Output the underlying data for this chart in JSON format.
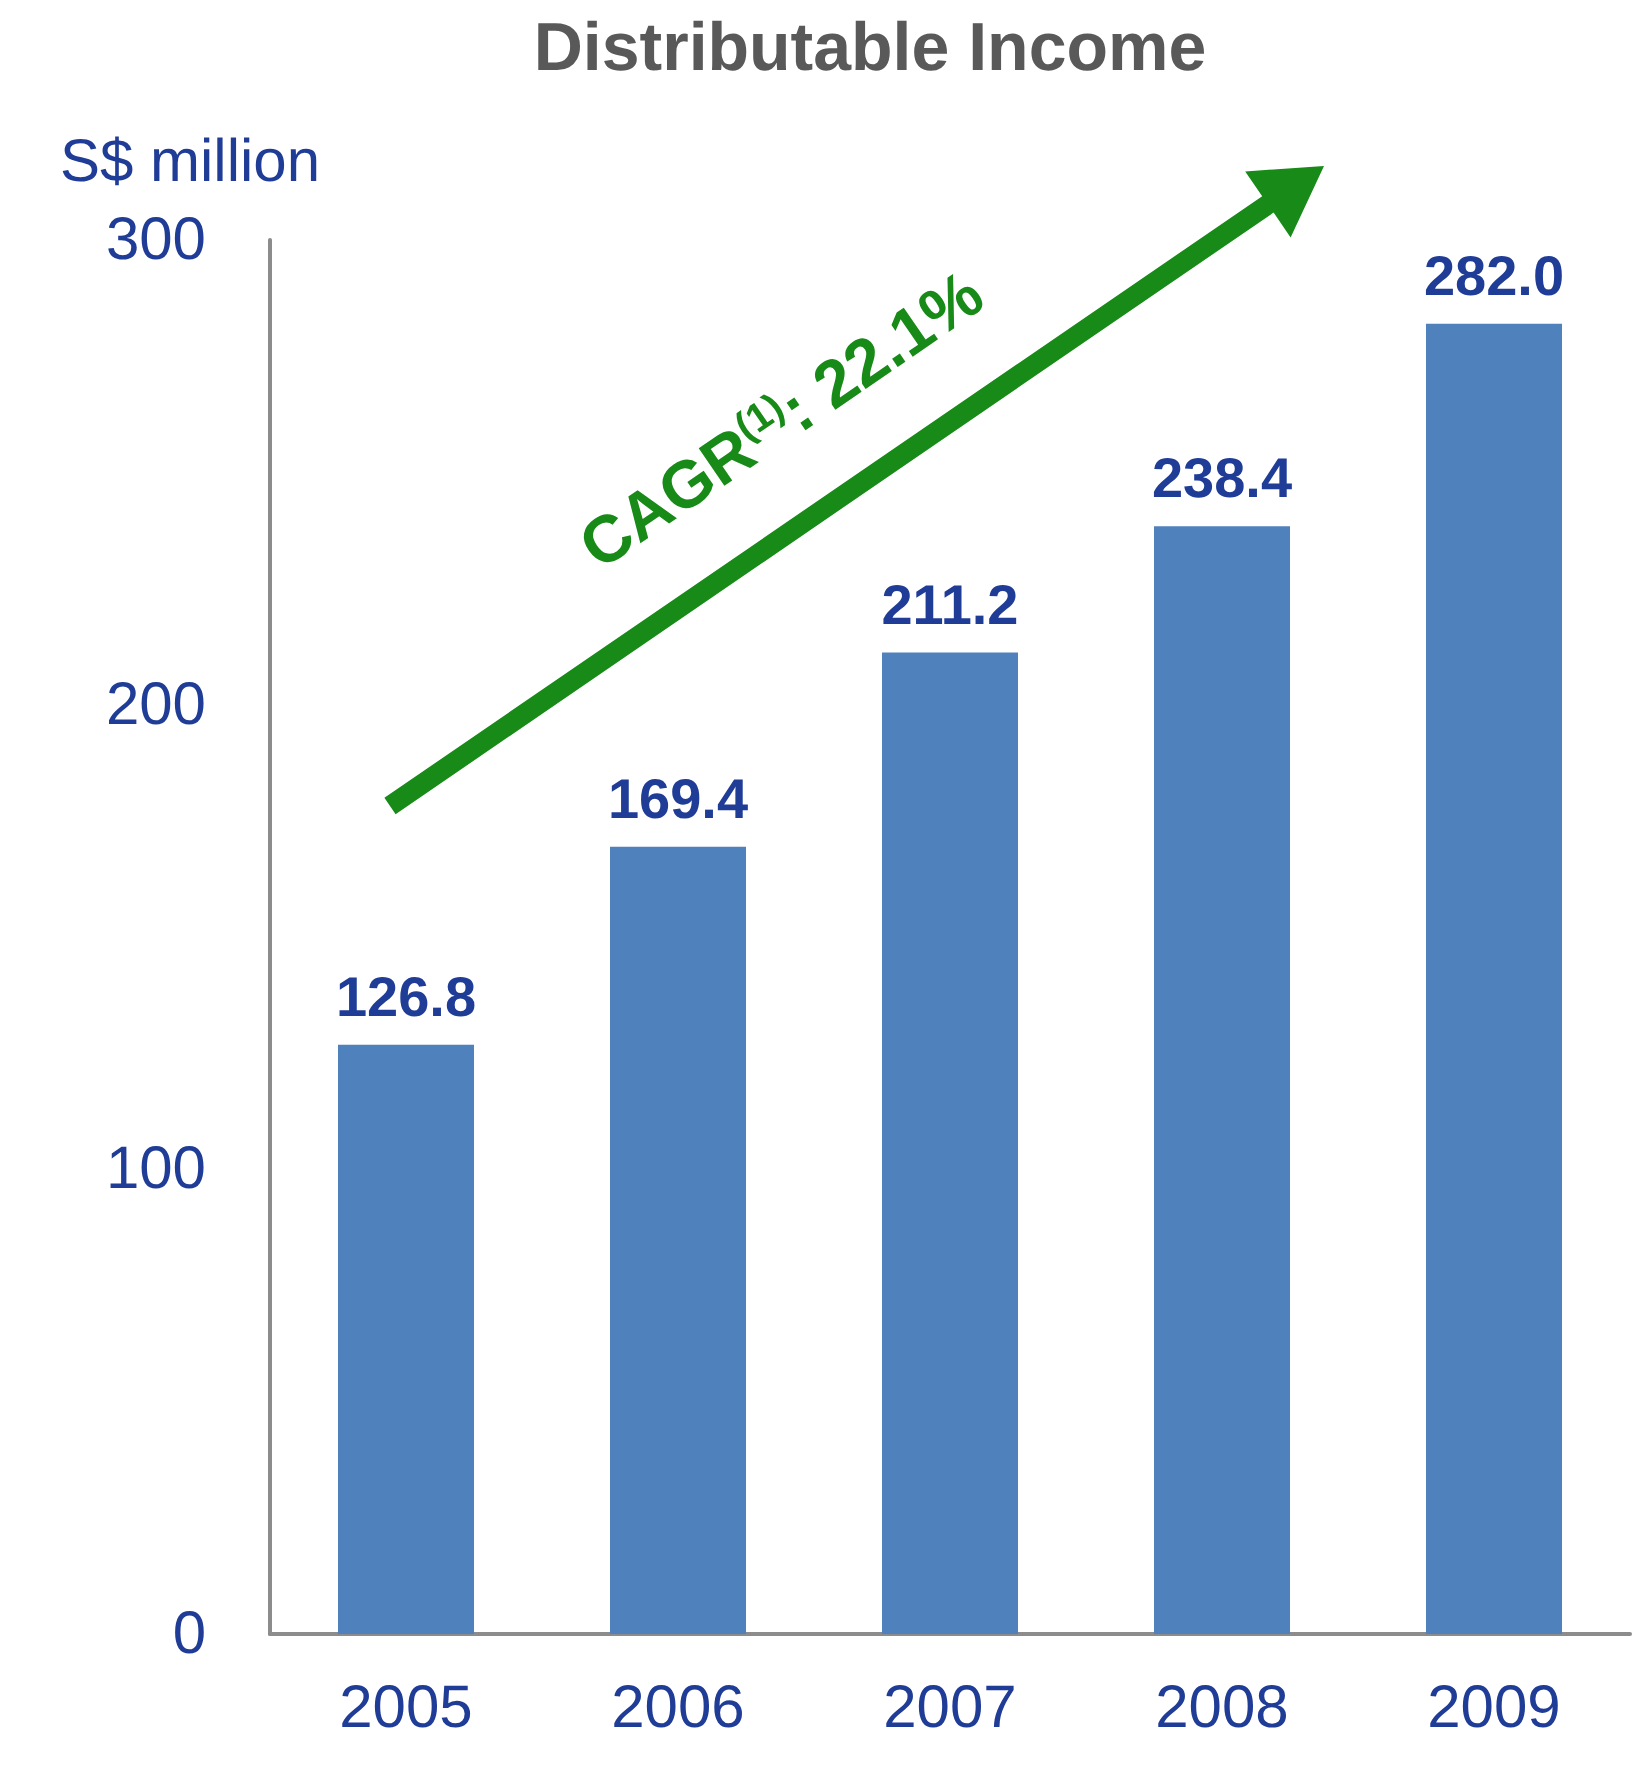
{
  "chart_data": {
    "type": "bar",
    "title": "Distributable Income",
    "ylabel": "S$ million",
    "categories": [
      "2005",
      "2006",
      "2007",
      "2008",
      "2009"
    ],
    "values": [
      126.8,
      169.4,
      211.2,
      238.4,
      282.0
    ],
    "value_labels": [
      "126.8",
      "169.4",
      "211.2",
      "238.4",
      "282.0"
    ],
    "color": "#4f81bd",
    "ylim": [
      0,
      300
    ],
    "yticks": [
      0,
      100,
      200,
      300
    ],
    "annotations": [
      "CAGR$^{(1)}$: 22.1%"
    ]
  }
}
